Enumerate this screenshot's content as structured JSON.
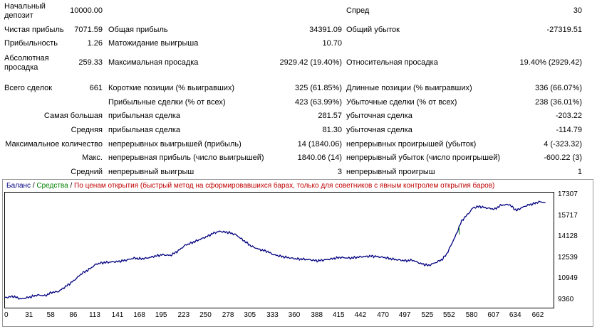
{
  "report": {
    "initial_deposit": {
      "label": "Начальный\nдепозит",
      "value": "10000.00"
    },
    "spread": {
      "label": "Спред",
      "value": "30"
    },
    "net_profit": {
      "label": "Чистая прибыль",
      "value": "7071.59"
    },
    "gross_profit": {
      "label": "Общая прибыль",
      "value": "34391.09"
    },
    "gross_loss": {
      "label": "Общий убыток",
      "value": "-27319.51"
    },
    "profit_factor": {
      "label": "Прибыльность",
      "value": "1.26"
    },
    "expected_payoff": {
      "label": "Матожидание выигрыша",
      "value": "10.70"
    },
    "absolute_drawdown": {
      "label": "Абсолютная\nпросадка",
      "value": "259.33"
    },
    "maximal_drawdown": {
      "label": "Максимальная просадка",
      "value": "2929.42 (19.40%)"
    },
    "relative_drawdown": {
      "label": "Относительная просадка",
      "value": "19.40% (2929.42)"
    },
    "total_trades": {
      "label": "Всего сделок",
      "value": "661"
    },
    "short_positions": {
      "label": "Короткие позиции (% выигравших)",
      "value": "325 (61.85%)"
    },
    "long_positions": {
      "label": "Длинные позиции (% выигравших)",
      "value": "336 (66.07%)"
    },
    "profit_trades": {
      "label": "Прибыльные сделки (% от всех)",
      "value": "423 (63.99%)"
    },
    "loss_trades": {
      "label": "Убыточные сделки (% от всех)",
      "value": "238 (36.01%)"
    },
    "largest": {
      "label": "Самая большая",
      "profit_label": "прибыльная сделка",
      "profit_value": "281.57",
      "loss_label": "убыточная сделка",
      "loss_value": "-203.22"
    },
    "average": {
      "label": "Средняя",
      "profit_label": "прибыльная сделка",
      "profit_value": "81.30",
      "loss_label": "убыточная сделка",
      "loss_value": "-114.79"
    },
    "max_consecutive": {
      "label": "Максимальное количество",
      "wins_label": "непрерывных выигрышей (прибыль)",
      "wins_value": "14 (1840.06)",
      "losses_label": "непрерывных проигрышей (убыток)",
      "losses_value": "4 (-323.32)"
    },
    "max_consecutive_amount": {
      "label": "Макс.",
      "wins_label": "непрерывная прибыль (число выигрышей)",
      "wins_value": "1840.06 (14)",
      "losses_label": "непрерывный убыток (число проигрышей)",
      "losses_value": "-600.22 (3)"
    },
    "avg_consecutive": {
      "label": "Средний",
      "wins_label": "непрерывный выигрыш",
      "wins_value": "3",
      "losses_label": "непрерывный проигрыш",
      "losses_value": "1"
    }
  },
  "legend": {
    "balance": "Баланс",
    "sep": "/",
    "equity": "Средства",
    "mode": "По ценам открытия (быстрый метод на сформировавшихся барах, только для советников с явным контролем открытия баров)"
  },
  "colors": {
    "balance": "#000080",
    "equity": "#008000",
    "mode": "#c00000"
  },
  "chart_data": {
    "type": "line",
    "series": [
      {
        "name": "Баланс",
        "x": [
          0,
          10,
          20,
          31,
          40,
          50,
          58,
          66,
          72,
          78,
          86,
          95,
          104,
          113,
          120,
          130,
          141,
          150,
          160,
          168,
          176,
          186,
          195,
          205,
          215,
          223,
          232,
          240,
          250,
          258,
          266,
          272,
          278,
          286,
          295,
          305,
          315,
          325,
          333,
          345,
          360,
          375,
          388,
          400,
          415,
          428,
          442,
          455,
          470,
          483,
          497,
          505,
          515,
          525,
          535,
          542,
          548,
          552,
          556,
          560,
          563,
          566,
          570,
          575,
          580,
          588,
          596,
          607,
          615,
          625,
          634,
          640,
          648,
          655,
          662,
          670
        ],
        "y": [
          10000,
          10100,
          9900,
          10050,
          10200,
          10150,
          10400,
          10450,
          10700,
          10950,
          11300,
          11800,
          12100,
          12500,
          12600,
          12650,
          12700,
          12800,
          12950,
          12900,
          12950,
          13100,
          13200,
          13150,
          13500,
          13900,
          14100,
          14300,
          14550,
          14800,
          14950,
          14900,
          14850,
          14700,
          14300,
          13850,
          13600,
          13450,
          13200,
          13050,
          12900,
          12850,
          12750,
          12850,
          13000,
          12950,
          13050,
          13100,
          13000,
          12850,
          12750,
          12800,
          12550,
          12400,
          12650,
          12850,
          13300,
          13800,
          14300,
          14800,
          15300,
          15700,
          16000,
          16300,
          16700,
          16800,
          16700,
          16600,
          16900,
          16950,
          16500,
          16700,
          16900,
          17000,
          17150,
          17100
        ]
      }
    ],
    "y_ticks": [
      "17307",
      "15717",
      "14128",
      "12539",
      "10949",
      "9360"
    ],
    "x_ticks": [
      "0",
      "31",
      "58",
      "86",
      "113",
      "141",
      "168",
      "195",
      "223",
      "250",
      "278",
      "305",
      "333",
      "360",
      "388",
      "415",
      "442",
      "470",
      "497",
      "525",
      "552",
      "580",
      "607",
      "634",
      "662"
    ],
    "ylim": [
      9360,
      17307
    ],
    "xlim": [
      0,
      680
    ],
    "grid": false
  }
}
